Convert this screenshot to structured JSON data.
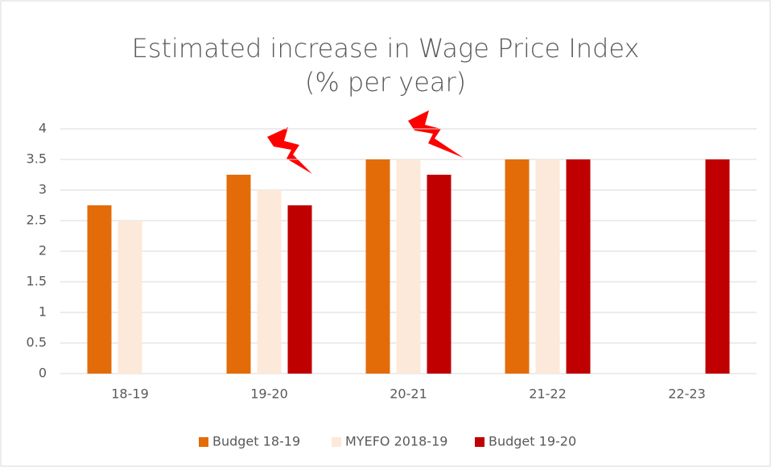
{
  "chart_data": {
    "type": "bar",
    "title": "Estimated increase in Wage Price Index",
    "subtitle": "(% per year)",
    "categories": [
      "18-19",
      "19-20",
      "20-21",
      "21-22",
      "22-23"
    ],
    "series": [
      {
        "name": "Budget 18-19",
        "color": "#e36c09",
        "values": [
          2.75,
          3.25,
          3.5,
          3.5,
          null
        ]
      },
      {
        "name": "MYEFO 2018-19",
        "color": "#fde9d9",
        "values": [
          2.5,
          3,
          3.5,
          3.5,
          null
        ]
      },
      {
        "name": "Budget 19-20",
        "color": "#c00000",
        "values": [
          null,
          2.75,
          3.25,
          3.5,
          3.5
        ]
      }
    ],
    "ylim": [
      0,
      4
    ],
    "yticks": [
      0,
      0.5,
      1,
      1.5,
      2,
      2.5,
      3,
      3.5,
      4
    ],
    "grid": true,
    "legend": "bottom"
  }
}
